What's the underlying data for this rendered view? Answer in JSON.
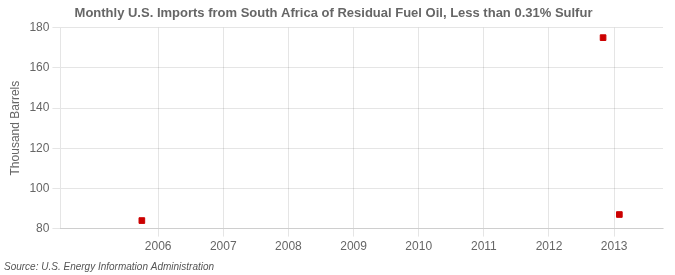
{
  "chart_data": {
    "type": "scatter",
    "title": "Monthly U.S. Imports from South Africa of Residual Fuel Oil, Less than 0.31% Sulfur",
    "y_label": "Thousand Barrels",
    "annotation": "Source: U.S. Energy Information Administration",
    "x": [
      2005.75,
      2012.83,
      2013.08
    ],
    "values": [
      84,
      175,
      87
    ],
    "color": "#CC0000",
    "marker": "square",
    "xlim": [
      2004.5,
      2013.75
    ],
    "xticks": [
      2006,
      2007,
      2008,
      2009,
      2010,
      2011,
      2012,
      2013
    ],
    "ylim": [
      80,
      180
    ],
    "yticks": [
      80,
      100,
      120,
      140,
      160,
      180
    ],
    "grid": true
  }
}
